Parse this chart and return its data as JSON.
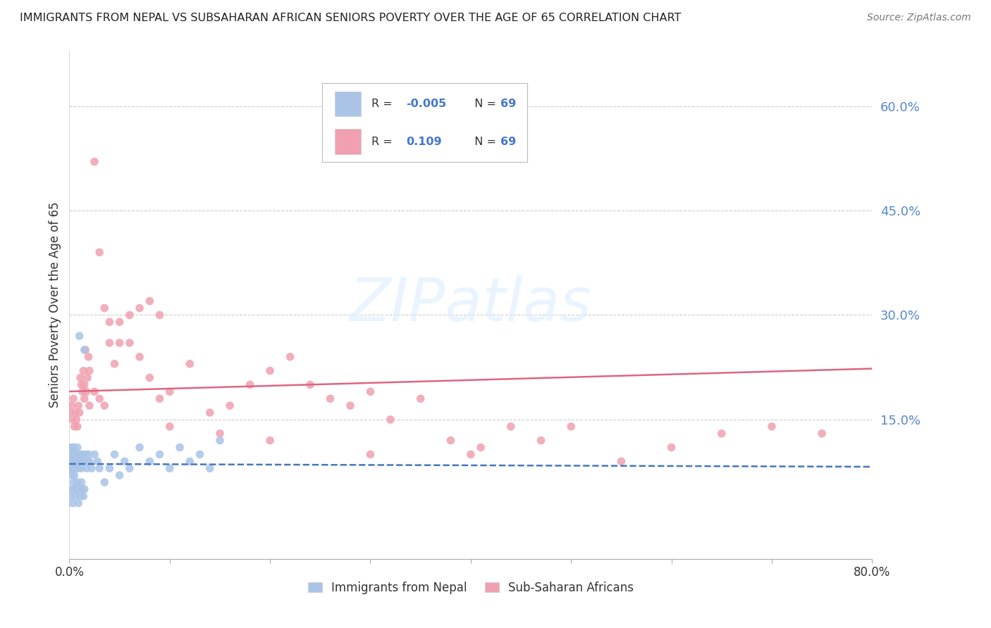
{
  "title": "IMMIGRANTS FROM NEPAL VS SUBSAHARAN AFRICAN SENIORS POVERTY OVER THE AGE OF 65 CORRELATION CHART",
  "source": "Source: ZipAtlas.com",
  "ylabel": "Seniors Poverty Over the Age of 65",
  "right_ytick_values": [
    0.6,
    0.45,
    0.3,
    0.15
  ],
  "right_ytick_labels": [
    "60.0%",
    "45.0%",
    "30.0%",
    "15.0%"
  ],
  "xlim": [
    0.0,
    0.8
  ],
  "ylim": [
    -0.05,
    0.68
  ],
  "nepal_color": "#aac4e8",
  "subsaharan_color": "#f0a0b0",
  "nepal_trendline_color": "#4477bb",
  "subsaharan_trendline_color": "#dd6680",
  "nepal_r": -0.005,
  "nepal_n": 69,
  "subsaharan_r": 0.109,
  "subsaharan_n": 69,
  "watermark": "ZIPatlas",
  "background_color": "#ffffff",
  "grid_color": "#cccccc",
  "right_axis_color": "#5588cc",
  "marker_size": 70,
  "nepal_x": [
    0.001,
    0.001,
    0.001,
    0.002,
    0.002,
    0.002,
    0.003,
    0.003,
    0.003,
    0.004,
    0.004,
    0.004,
    0.005,
    0.005,
    0.005,
    0.006,
    0.006,
    0.007,
    0.007,
    0.008,
    0.008,
    0.009,
    0.009,
    0.01,
    0.01,
    0.011,
    0.012,
    0.013,
    0.014,
    0.015,
    0.016,
    0.017,
    0.018,
    0.019,
    0.02,
    0.022,
    0.025,
    0.028,
    0.03,
    0.035,
    0.04,
    0.045,
    0.05,
    0.055,
    0.06,
    0.07,
    0.08,
    0.09,
    0.1,
    0.11,
    0.12,
    0.13,
    0.14,
    0.15,
    0.001,
    0.002,
    0.003,
    0.004,
    0.005,
    0.006,
    0.007,
    0.008,
    0.009,
    0.01,
    0.011,
    0.012,
    0.013,
    0.014,
    0.015
  ],
  "nepal_y": [
    0.1,
    0.09,
    0.08,
    0.1,
    0.11,
    0.09,
    0.08,
    0.1,
    0.07,
    0.09,
    0.11,
    0.08,
    0.1,
    0.09,
    0.07,
    0.09,
    0.08,
    0.1,
    0.09,
    0.11,
    0.1,
    0.09,
    0.08,
    0.27,
    0.1,
    0.09,
    0.08,
    0.1,
    0.09,
    0.25,
    0.1,
    0.08,
    0.09,
    0.1,
    0.09,
    0.08,
    0.1,
    0.09,
    0.08,
    0.06,
    0.08,
    0.1,
    0.07,
    0.09,
    0.08,
    0.11,
    0.09,
    0.1,
    0.08,
    0.11,
    0.09,
    0.1,
    0.08,
    0.12,
    0.04,
    0.05,
    0.03,
    0.06,
    0.05,
    0.04,
    0.05,
    0.06,
    0.03,
    0.05,
    0.04,
    0.06,
    0.05,
    0.04,
    0.05
  ],
  "subsaharan_x": [
    0.001,
    0.002,
    0.003,
    0.004,
    0.005,
    0.006,
    0.007,
    0.008,
    0.009,
    0.01,
    0.011,
    0.012,
    0.013,
    0.014,
    0.015,
    0.016,
    0.017,
    0.018,
    0.019,
    0.02,
    0.025,
    0.03,
    0.035,
    0.04,
    0.045,
    0.05,
    0.06,
    0.07,
    0.08,
    0.09,
    0.1,
    0.12,
    0.14,
    0.16,
    0.18,
    0.2,
    0.22,
    0.24,
    0.26,
    0.28,
    0.3,
    0.32,
    0.35,
    0.38,
    0.41,
    0.44,
    0.47,
    0.5,
    0.55,
    0.6,
    0.65,
    0.7,
    0.75,
    0.015,
    0.02,
    0.025,
    0.03,
    0.035,
    0.04,
    0.05,
    0.06,
    0.07,
    0.08,
    0.09,
    0.1,
    0.15,
    0.2,
    0.3,
    0.4
  ],
  "subsaharan_y": [
    0.16,
    0.17,
    0.15,
    0.18,
    0.14,
    0.16,
    0.15,
    0.14,
    0.17,
    0.16,
    0.21,
    0.2,
    0.19,
    0.22,
    0.2,
    0.25,
    0.19,
    0.21,
    0.24,
    0.22,
    0.52,
    0.39,
    0.31,
    0.29,
    0.23,
    0.29,
    0.26,
    0.24,
    0.21,
    0.18,
    0.19,
    0.23,
    0.16,
    0.17,
    0.2,
    0.22,
    0.24,
    0.2,
    0.18,
    0.17,
    0.19,
    0.15,
    0.18,
    0.12,
    0.11,
    0.14,
    0.12,
    0.14,
    0.09,
    0.11,
    0.13,
    0.14,
    0.13,
    0.18,
    0.17,
    0.19,
    0.18,
    0.17,
    0.26,
    0.26,
    0.3,
    0.31,
    0.32,
    0.3,
    0.14,
    0.13,
    0.12,
    0.1,
    0.1
  ]
}
